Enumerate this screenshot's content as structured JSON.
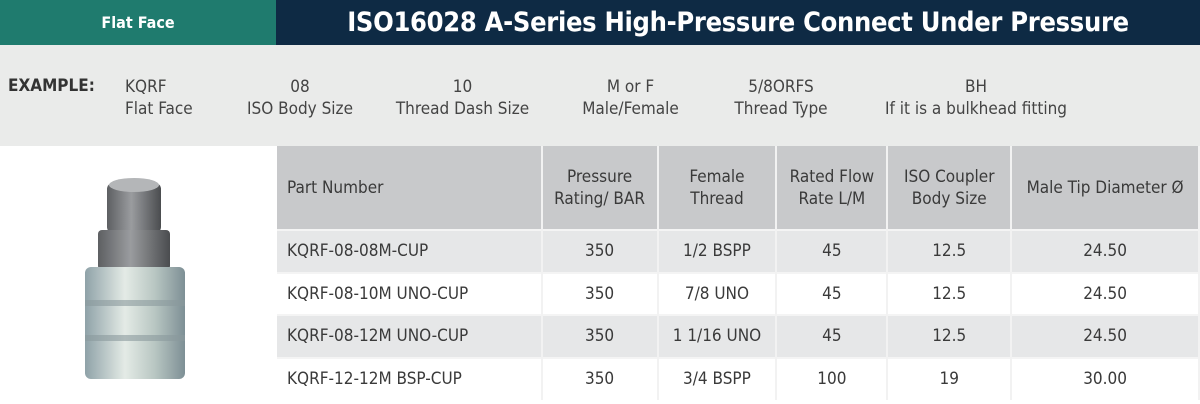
{
  "header": {
    "tag": "Flat Face",
    "title": "ISO16028 A-Series High-Pressure Connect Under Pressure"
  },
  "example": {
    "label": "EXAMPLE:",
    "parts": [
      {
        "code": "KQRF",
        "desc": "Flat Face"
      },
      {
        "code": "08",
        "desc": "ISO Body Size"
      },
      {
        "code": "10",
        "desc": "Thread Dash Size"
      },
      {
        "code": "M or F",
        "desc": "Male/Female"
      },
      {
        "code": "5/8ORFS",
        "desc": "Thread Type"
      },
      {
        "code": "BH",
        "desc": "If it is a bulkhead fitting"
      }
    ]
  },
  "table": {
    "headers": [
      "Part Number",
      "Pressure Rating/ BAR",
      "Female Thread",
      "Rated Flow Rate L/M",
      "ISO Coupler Body Size",
      "Male Tip Diameter Ø"
    ],
    "rows": [
      [
        "KQRF-08-08M-CUP",
        "350",
        "1/2 BSPP",
        "45",
        "12.5",
        "24.50"
      ],
      [
        "KQRF-08-10M UNO-CUP",
        "350",
        "7/8 UNO",
        "45",
        "12.5",
        "24.50"
      ],
      [
        "KQRF-08-12M UNO-CUP",
        "350",
        "1 1/16 UNO",
        "45",
        "12.5",
        "24.50"
      ],
      [
        "KQRF-12-12M BSP-CUP",
        "350",
        "3/4 BSPP",
        "100",
        "19",
        "30.00"
      ]
    ]
  }
}
